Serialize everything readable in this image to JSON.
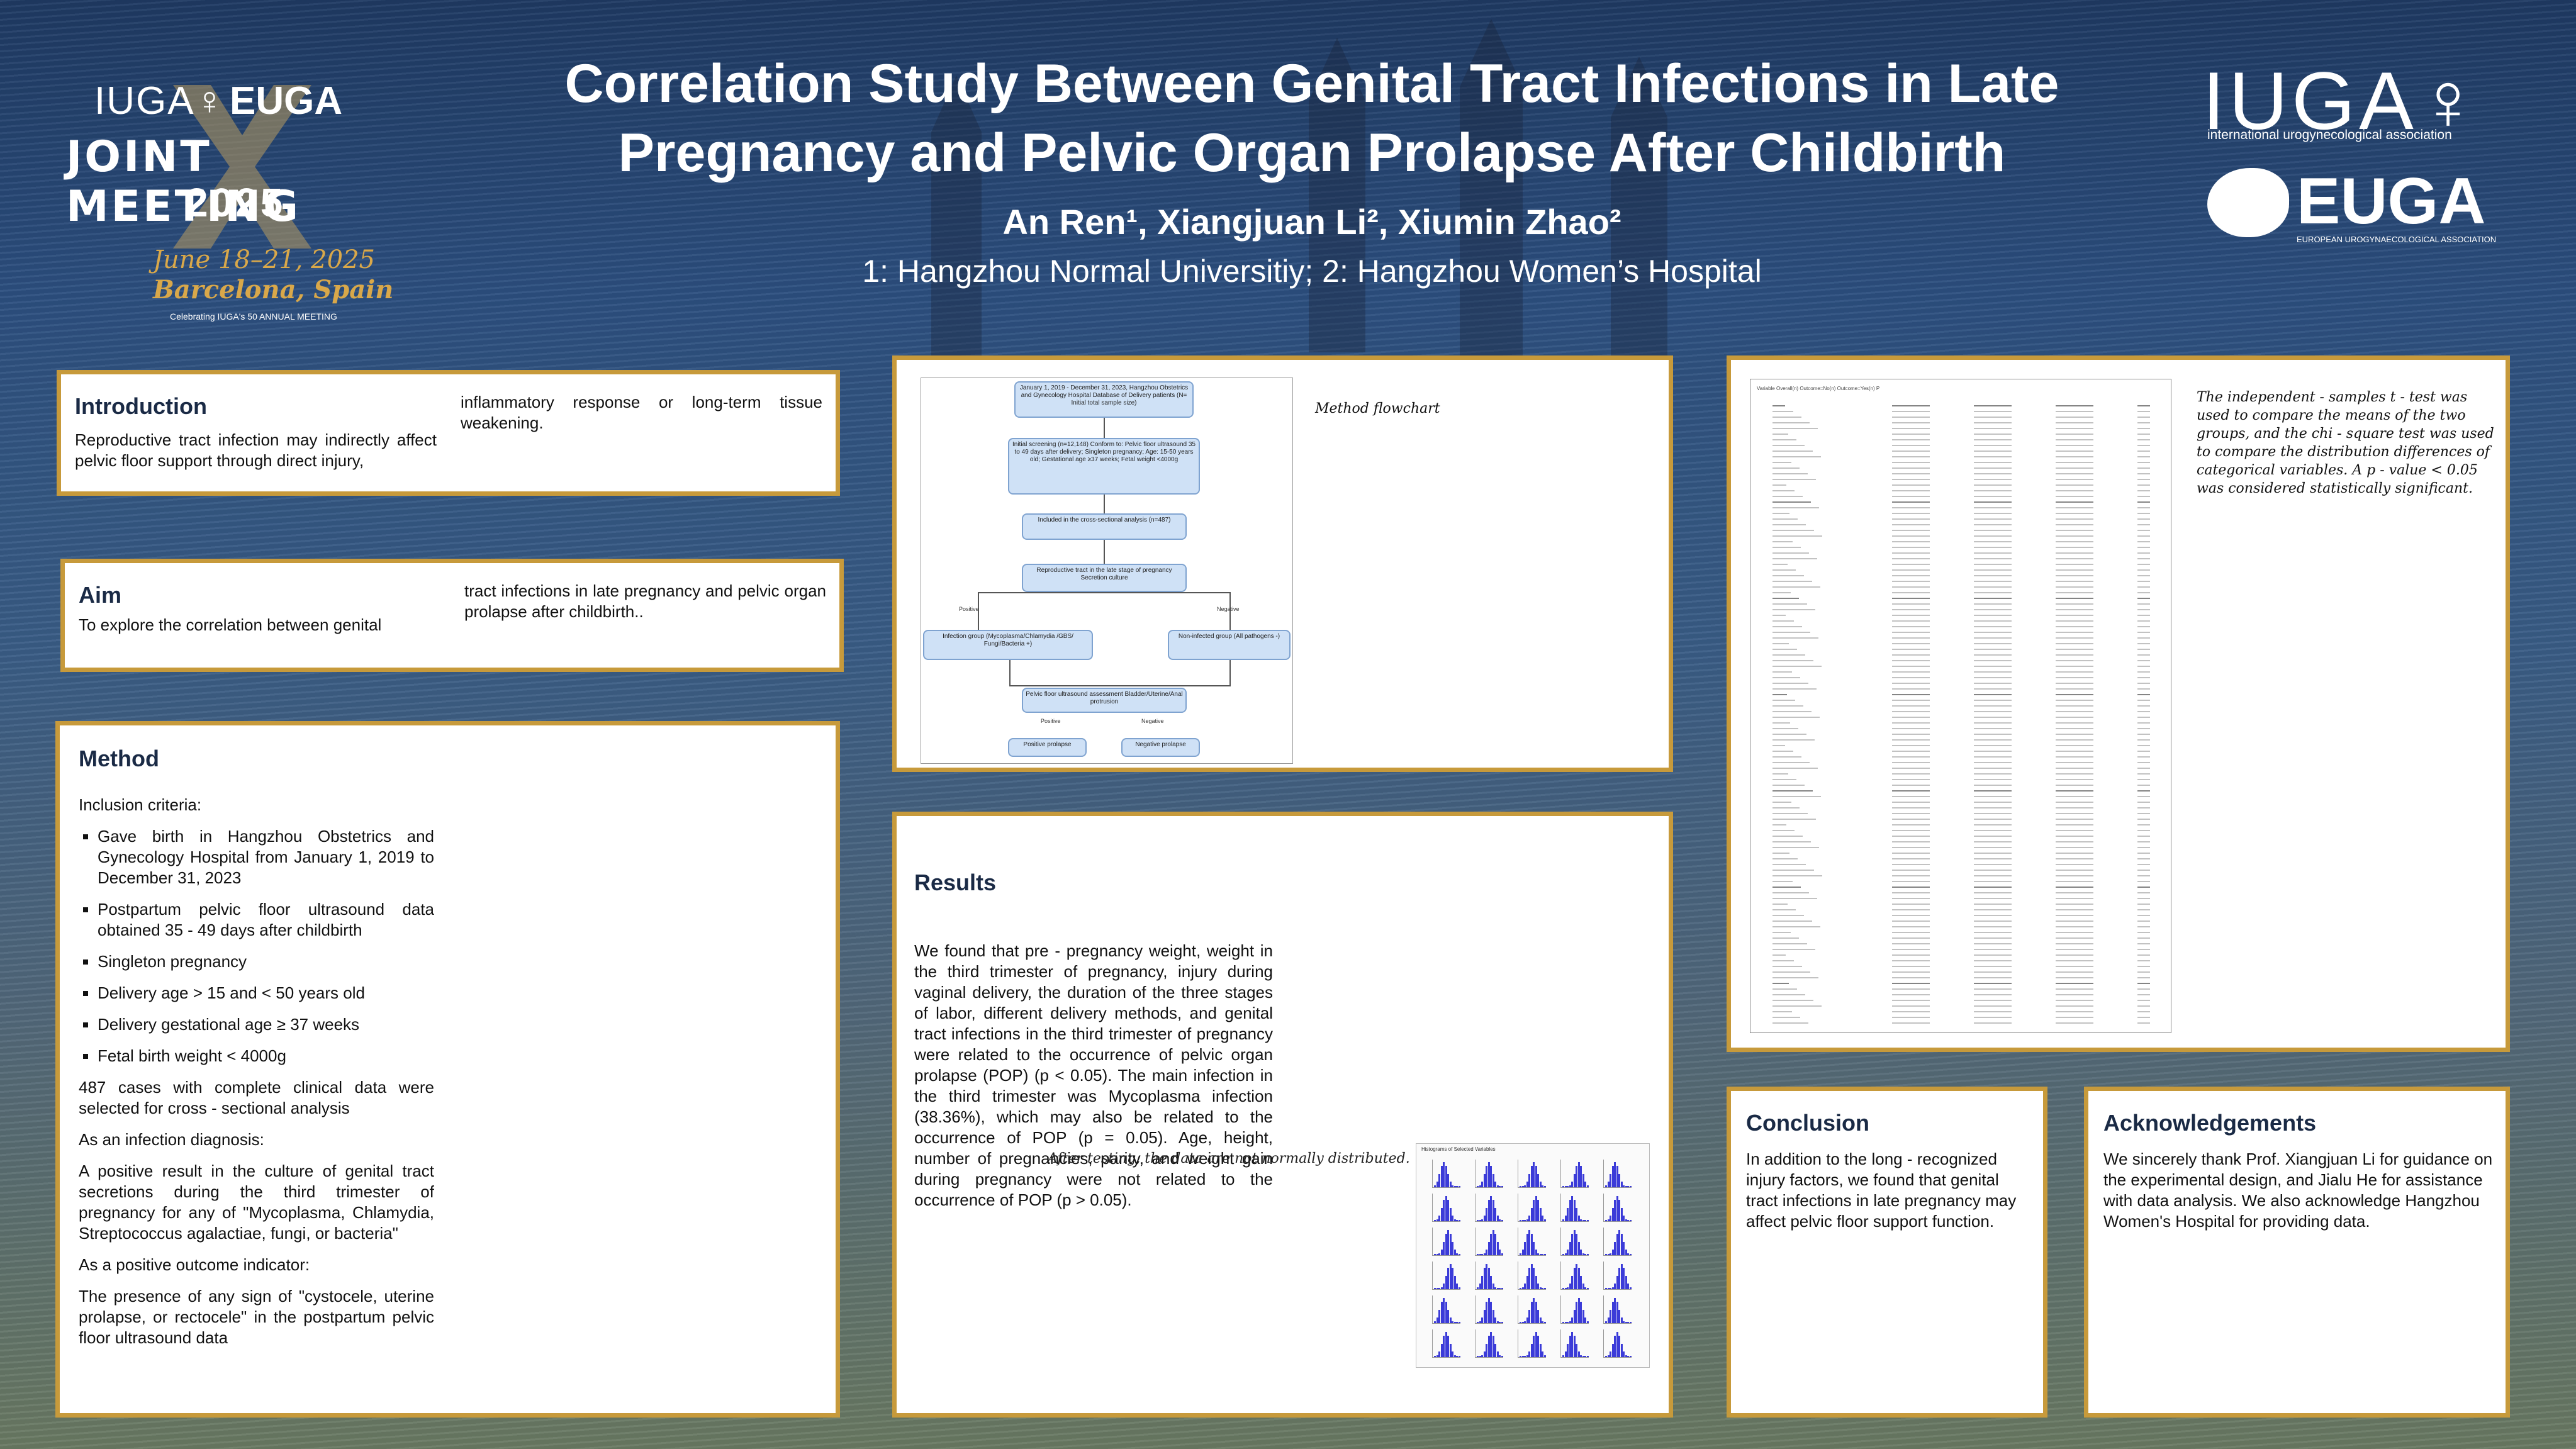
{
  "header": {
    "title_line1": "Correlation Study Between Genital Tract Infections in Late",
    "title_line2": "Pregnancy and Pelvic Organ Prolapse After Childbirth",
    "authors": "An Ren¹, Xiangjuan Li², Xiumin Zhao²",
    "affiliations": "1: Hangzhou Normal Universitiy; 2: Hangzhou Women’s Hospital"
  },
  "logo_left": {
    "iuga": "IUGA♀",
    "euga": "EUGA",
    "joint": "JOINT MEETING",
    "year": "2025",
    "date": "June 18–21, 2025",
    "city": "Barcelona, Spain",
    "anniv": "Celebrating IUGA's 50 ANNUAL MEETING"
  },
  "logo_right": {
    "iuga": "IUGA♀",
    "iuga_sub": "international urogynecological association",
    "euga": "EUGA",
    "euga_sub": "EUROPEAN UROGYNAECOLOGICAL ASSOCIATION"
  },
  "introduction": {
    "heading": "Introduction",
    "col1": "Reproductive tract infection may indirectly affect pelvic floor support through direct injury,",
    "col2": "inflammatory response or long-term tissue weakening."
  },
  "aim": {
    "heading": "Aim",
    "col1": "To explore the correlation between genital",
    "col2": "tract infections in late pregnancy and pelvic organ prolapse after childbirth.."
  },
  "method": {
    "heading": "Method",
    "inclusion_label": "Inclusion criteria:",
    "criteria": [
      "Gave birth in Hangzhou Obstetrics and Gynecology Hospital from January 1, 2019 to December 31, 2023",
      "Postpartum pelvic floor ultrasound data obtained 35 - 49 days after childbirth",
      "Singleton pregnancy",
      "Delivery age > 15 and < 50 years old",
      "Delivery gestational age ≥ 37 weeks",
      "Fetal birth weight < 4000g"
    ],
    "cases": "487 cases with complete clinical data were selected for cross - sectional analysis",
    "infection_label": "As an infection diagnosis:",
    "infection_text": "A positive result in the culture of genital tract secretions during the third trimester of pregnancy for any of \"Mycoplasma, Chlamydia, Streptococcus agalactiae, fungi, or bacteria\"",
    "outcome_label": "As a positive outcome indicator:",
    "outcome_text": "The presence of any sign of \"cystocele, uterine prolapse, or rectocele\" in the postpartum pelvic floor ultrasound data"
  },
  "flowchart": {
    "caption": "Method flowchart",
    "box1": "January 1, 2019 - December 31, 2023, Hangzhou Obstetrics and Gynecology Hospital Database of Delivery patients (N= Initial total sample size)",
    "box2": "Initial screening (n=12,148) Conform to: Pelvic floor ultrasound 35 to 49 days after delivery; Singleton pregnancy; Age: 15-50 years old; Gestational age ≥37 weeks; Fetal weight <4000g",
    "box3": "Included in the cross-sectional analysis (n=487)",
    "box4": "Reproductive tract in the late stage of pregnancy Secretion culture",
    "positive": "Positive",
    "negative": "Negative",
    "box5": "Infection group (Mycoplasma/Chlamydia /GBS/ Fungi/Bacteria +)",
    "box6": "Non-infected group (All pathogens -)",
    "box7": "Pelvic floor ultrasound assessment Bladder/Uterine/Anal protrusion",
    "box8": "Positive prolapse",
    "box9": "Negative prolapse"
  },
  "results": {
    "heading": "Results",
    "text": "We found that pre - pregnancy weight, weight in the third trimester of pregnancy, injury during vaginal delivery, the duration of the three stages of labor, different delivery methods, and genital tract infections in the third trimester of pregnancy were related to the occurrence of pelvic organ prolapse (POP) (p < 0.05). The main infection in the third trimester was Mycoplasma infection (38.36%), which may also be related to the occurrence of POP (p = 0.05). Age, height, number of pregnancies, parity, and weight gain during pregnancy were not related to the occurrence of POP (p > 0.05).",
    "overlay_note": "After testing, the data are not normally distributed.",
    "hist_title": "Histograms of Selected Variables"
  },
  "stats": {
    "table_header": "Variable   Overall(n)   Outcome=No(n)   Outcome=Yes(n)   P",
    "note": "The independent - samples t - test was used to compare the means of the two groups, and the chi - square test was used to compare the distribution differences of categorical variables.  A p - value < 0.05 was considered statistically significant."
  },
  "conclusion": {
    "heading": "Conclusion",
    "text": "In addition to the long - recognized injury factors, we found that genital tract infections in late pregnancy may affect pelvic floor support function."
  },
  "acknowledgements": {
    "heading": "Acknowledgements",
    "text": "We sincerely thank Prof. Xiangjuan Li for guidance on the experimental design, and Jialu He for assistance with data analysis.  We also acknowledge Hangzhou Women's Hospital  for providing data."
  },
  "colors": {
    "panel_border": "#c79a3b",
    "gold_text": "#d9a84a",
    "flow_box": "#cfe1f6",
    "histogram_bar": "#3b3bd8"
  }
}
